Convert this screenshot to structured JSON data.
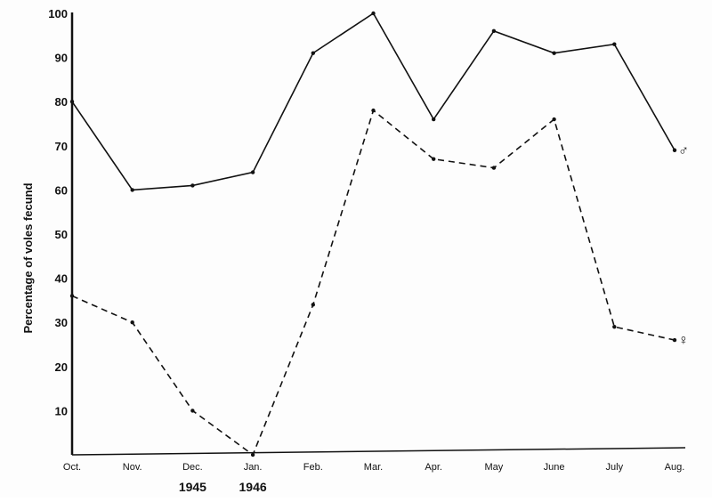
{
  "chart_data": {
    "type": "line",
    "ylabel": "Percentage of voles fecund",
    "xlabel": "",
    "categories": [
      "Oct.",
      "Nov.",
      "Dec.",
      "Jan.",
      "Feb.",
      "Mar.",
      "Apr.",
      "May",
      "June",
      "July",
      "Aug."
    ],
    "year_labels": [
      {
        "category": "Dec.",
        "text": "1945"
      },
      {
        "category": "Jan.",
        "text": "1946"
      }
    ],
    "ylim": [
      0,
      100
    ],
    "yticks": [
      10,
      20,
      30,
      40,
      50,
      60,
      70,
      80,
      90,
      100
    ],
    "grid": false,
    "series": [
      {
        "name": "♂",
        "style": "solid",
        "values": [
          80,
          60,
          61,
          64,
          91,
          100,
          76,
          96,
          91,
          93,
          69
        ]
      },
      {
        "name": "♀",
        "style": "dashed",
        "values": [
          36,
          30,
          10,
          0,
          34,
          78,
          67,
          65,
          76,
          29,
          26
        ]
      }
    ]
  }
}
